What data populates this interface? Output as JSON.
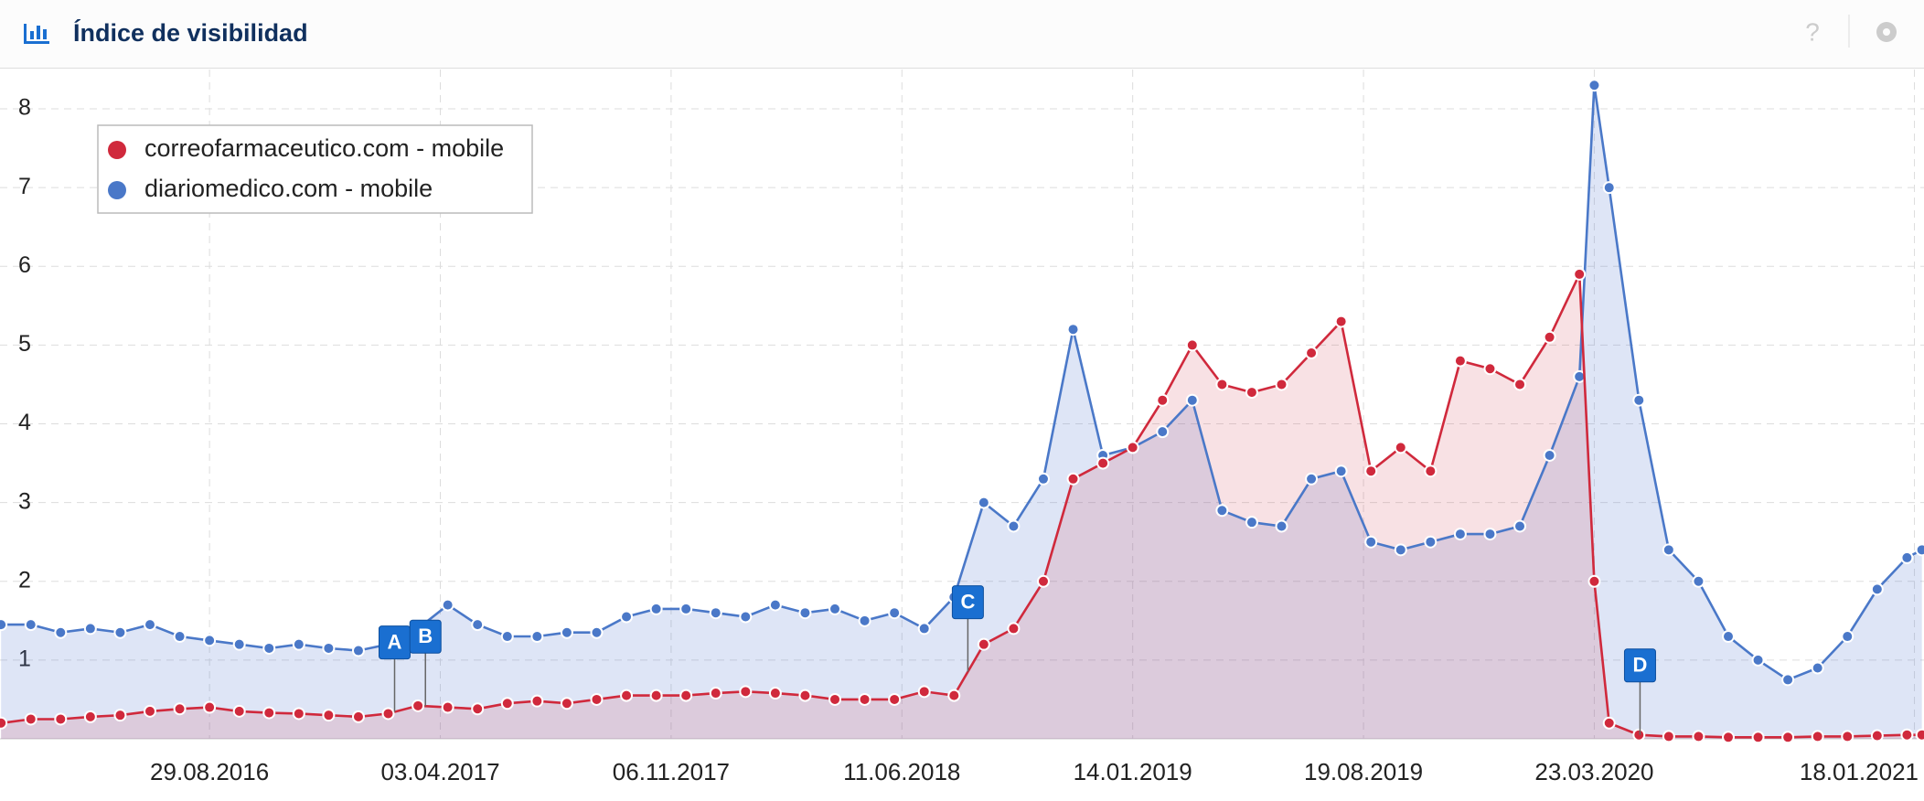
{
  "header": {
    "title": "Índice de visibilidad",
    "help": "?"
  },
  "chart_data": {
    "type": "area",
    "x": [
      "15.02.2016",
      "14.03.2016",
      "11.04.2016",
      "09.05.2016",
      "06.06.2016",
      "04.07.2016",
      "01.08.2016",
      "29.08.2016",
      "26.09.2016",
      "24.10.2016",
      "21.11.2016",
      "19.12.2016",
      "16.01.2017",
      "13.02.2017",
      "13.03.2017",
      "10.04.2017",
      "08.05.2017",
      "05.06.2017",
      "03.07.2017",
      "31.07.2017",
      "28.08.2017",
      "25.09.2017",
      "23.10.2017",
      "20.11.2017",
      "18.12.2017",
      "15.01.2018",
      "12.02.2018",
      "12.03.2018",
      "09.04.2018",
      "07.05.2018",
      "04.06.2018",
      "02.07.2018",
      "30.07.2018",
      "27.08.2018",
      "24.09.2018",
      "22.10.2018",
      "19.11.2018",
      "17.12.2018",
      "14.01.2019",
      "11.02.2019",
      "11.03.2019",
      "08.04.2019",
      "06.05.2019",
      "03.06.2019",
      "01.07.2019",
      "29.07.2019",
      "26.08.2019",
      "23.09.2019",
      "21.10.2019",
      "18.11.2019",
      "16.12.2019",
      "13.01.2020",
      "10.02.2020",
      "09.03.2020",
      "23.03.2020",
      "06.04.2020",
      "04.05.2020",
      "01.06.2020",
      "29.06.2020",
      "27.07.2020",
      "24.08.2020",
      "21.09.2020",
      "19.10.2020",
      "16.11.2020",
      "14.12.2020",
      "11.01.2021",
      "25.01.2021"
    ],
    "series": [
      {
        "name": "correofarmaceutico.com - mobile",
        "color": "#d0293c",
        "values": [
          0.2,
          0.25,
          0.25,
          0.28,
          0.3,
          0.35,
          0.38,
          0.4,
          0.35,
          0.33,
          0.32,
          0.3,
          0.28,
          0.32,
          0.42,
          0.4,
          0.38,
          0.45,
          0.48,
          0.45,
          0.5,
          0.55,
          0.55,
          0.55,
          0.58,
          0.6,
          0.58,
          0.55,
          0.5,
          0.5,
          0.5,
          0.6,
          0.55,
          1.2,
          1.4,
          2.0,
          3.3,
          3.5,
          3.7,
          4.3,
          5.0,
          4.5,
          4.4,
          4.5,
          4.9,
          5.3,
          3.4,
          3.7,
          3.4,
          4.8,
          4.7,
          4.5,
          5.1,
          5.9,
          2.0,
          0.2,
          0.05,
          0.03,
          0.03,
          0.02,
          0.02,
          0.02,
          0.03,
          0.03,
          0.04,
          0.05,
          0.05
        ]
      },
      {
        "name": "diariomedico.com - mobile",
        "color": "#4a78c8",
        "values": [
          1.45,
          1.45,
          1.35,
          1.4,
          1.35,
          1.45,
          1.3,
          1.25,
          1.2,
          1.15,
          1.2,
          1.15,
          1.12,
          1.2,
          1.4,
          1.7,
          1.45,
          1.3,
          1.3,
          1.35,
          1.35,
          1.55,
          1.65,
          1.65,
          1.6,
          1.55,
          1.7,
          1.6,
          1.65,
          1.5,
          1.6,
          1.4,
          1.8,
          3.0,
          2.7,
          3.3,
          5.2,
          3.6,
          3.7,
          3.9,
          4.3,
          2.9,
          2.75,
          2.7,
          3.3,
          3.4,
          2.5,
          2.4,
          2.5,
          2.6,
          2.6,
          2.7,
          3.6,
          4.6,
          8.3,
          7.0,
          4.3,
          2.4,
          2.0,
          1.3,
          1.0,
          0.75,
          0.9,
          1.3,
          1.9,
          2.3,
          2.4
        ]
      }
    ],
    "xlim": [
      "14.02.2016",
      "27.01.2021"
    ],
    "xticks": [
      "29.08.2016",
      "03.04.2017",
      "06.11.2017",
      "11.06.2018",
      "14.01.2019",
      "19.08.2019",
      "23.03.2020",
      "18.01.2021"
    ],
    "ylim": [
      0,
      8.5
    ],
    "yticks": [
      1,
      2,
      3,
      4,
      5,
      6,
      7,
      8
    ],
    "grid": true,
    "legend": "top-left",
    "annotations": [
      {
        "label": "A",
        "x": "19.02.2017"
      },
      {
        "label": "B",
        "x": "20.03.2017"
      },
      {
        "label": "C",
        "x": "12.08.2018"
      },
      {
        "label": "D",
        "x": "05.05.2020"
      }
    ]
  }
}
